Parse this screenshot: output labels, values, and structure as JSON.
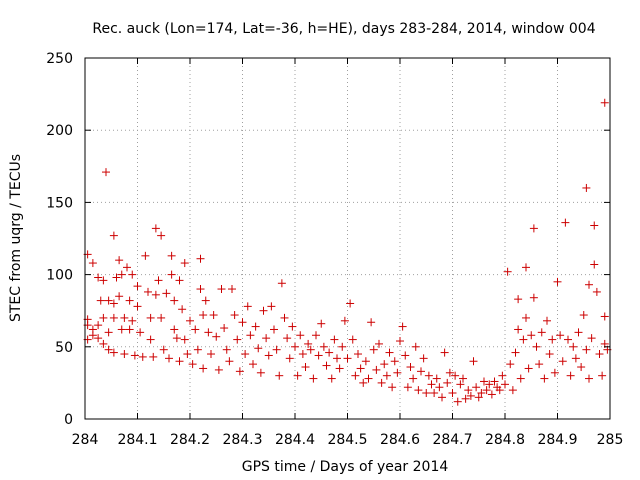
{
  "chart_data": {
    "type": "scatter",
    "title": "Rec. auck (Lon=174, Lat=-36, h=HE), days 283-284, 2014, window 004",
    "xlabel": "GPS time / Days of year 2014",
    "ylabel": "STEC from uqrg / TECUs",
    "xlim": [
      284,
      285
    ],
    "ylim": [
      0,
      250
    ],
    "grid": true,
    "marker": "+",
    "color": "#cc0000",
    "x_ticks": [
      "284",
      "284.1",
      "284.2",
      "284.3",
      "284.4",
      "284.5",
      "284.6",
      "284.7",
      "284.8",
      "284.9",
      "285"
    ],
    "y_ticks": [
      "0",
      "50",
      "100",
      "150",
      "200",
      "250"
    ],
    "series": [
      {
        "name": "STEC",
        "points": [
          [
            284.005,
            114
          ],
          [
            284.005,
            69
          ],
          [
            284.005,
            65
          ],
          [
            284.005,
            55
          ],
          [
            284.015,
            108
          ],
          [
            284.015,
            62
          ],
          [
            284.015,
            58
          ],
          [
            284.025,
            98
          ],
          [
            284.025,
            65
          ],
          [
            284.025,
            56
          ],
          [
            284.03,
            82
          ],
          [
            284.035,
            96
          ],
          [
            284.035,
            70
          ],
          [
            284.035,
            52
          ],
          [
            284.04,
            171
          ],
          [
            284.045,
            82
          ],
          [
            284.045,
            60
          ],
          [
            284.045,
            48
          ],
          [
            284.055,
            127
          ],
          [
            284.055,
            80
          ],
          [
            284.055,
            70
          ],
          [
            284.055,
            46
          ],
          [
            284.06,
            98
          ],
          [
            284.065,
            110
          ],
          [
            284.065,
            85
          ],
          [
            284.07,
            100
          ],
          [
            284.07,
            62
          ],
          [
            284.075,
            70
          ],
          [
            284.075,
            45
          ],
          [
            284.08,
            105
          ],
          [
            284.085,
            82
          ],
          [
            284.085,
            62
          ],
          [
            284.09,
            100
          ],
          [
            284.09,
            68
          ],
          [
            284.095,
            44
          ],
          [
            284.1,
            92
          ],
          [
            284.1,
            78
          ],
          [
            284.105,
            60
          ],
          [
            284.11,
            43
          ],
          [
            284.115,
            113
          ],
          [
            284.12,
            88
          ],
          [
            284.125,
            70
          ],
          [
            284.125,
            55
          ],
          [
            284.13,
            43
          ],
          [
            284.135,
            132
          ],
          [
            284.135,
            86
          ],
          [
            284.14,
            96
          ],
          [
            284.145,
            127
          ],
          [
            284.145,
            70
          ],
          [
            284.15,
            48
          ],
          [
            284.155,
            87
          ],
          [
            284.16,
            42
          ],
          [
            284.165,
            113
          ],
          [
            284.165,
            100
          ],
          [
            284.17,
            82
          ],
          [
            284.17,
            62
          ],
          [
            284.175,
            56
          ],
          [
            284.18,
            96
          ],
          [
            284.18,
            40
          ],
          [
            284.185,
            76
          ],
          [
            284.19,
            108
          ],
          [
            284.19,
            55
          ],
          [
            284.195,
            45
          ],
          [
            284.2,
            68
          ],
          [
            284.205,
            38
          ],
          [
            284.21,
            62
          ],
          [
            284.215,
            48
          ],
          [
            284.22,
            111
          ],
          [
            284.22,
            90
          ],
          [
            284.225,
            72
          ],
          [
            284.225,
            35
          ],
          [
            284.23,
            82
          ],
          [
            284.235,
            60
          ],
          [
            284.24,
            45
          ],
          [
            284.245,
            72
          ],
          [
            284.25,
            57
          ],
          [
            284.255,
            34
          ],
          [
            284.26,
            90
          ],
          [
            284.265,
            63
          ],
          [
            284.27,
            48
          ],
          [
            284.275,
            40
          ],
          [
            284.28,
            90
          ],
          [
            284.285,
            72
          ],
          [
            284.29,
            55
          ],
          [
            284.295,
            33
          ],
          [
            284.3,
            67
          ],
          [
            284.305,
            45
          ],
          [
            284.31,
            78
          ],
          [
            284.315,
            58
          ],
          [
            284.32,
            38
          ],
          [
            284.325,
            64
          ],
          [
            284.33,
            49
          ],
          [
            284.335,
            32
          ],
          [
            284.34,
            75
          ],
          [
            284.345,
            56
          ],
          [
            284.35,
            44
          ],
          [
            284.355,
            78
          ],
          [
            284.36,
            62
          ],
          [
            284.365,
            48
          ],
          [
            284.37,
            30
          ],
          [
            284.375,
            94
          ],
          [
            284.38,
            70
          ],
          [
            284.385,
            56
          ],
          [
            284.39,
            42
          ],
          [
            284.395,
            64
          ],
          [
            284.4,
            50
          ],
          [
            284.405,
            30
          ],
          [
            284.41,
            58
          ],
          [
            284.415,
            45
          ],
          [
            284.42,
            36
          ],
          [
            284.425,
            52
          ],
          [
            284.43,
            48
          ],
          [
            284.435,
            28
          ],
          [
            284.44,
            58
          ],
          [
            284.445,
            44
          ],
          [
            284.45,
            66
          ],
          [
            284.455,
            50
          ],
          [
            284.46,
            37
          ],
          [
            284.465,
            46
          ],
          [
            284.47,
            28
          ],
          [
            284.475,
            55
          ],
          [
            284.48,
            42
          ],
          [
            284.485,
            35
          ],
          [
            284.49,
            50
          ],
          [
            284.495,
            68
          ],
          [
            284.5,
            42
          ],
          [
            284.505,
            80
          ],
          [
            284.51,
            55
          ],
          [
            284.515,
            30
          ],
          [
            284.52,
            45
          ],
          [
            284.525,
            35
          ],
          [
            284.53,
            25
          ],
          [
            284.535,
            40
          ],
          [
            284.54,
            28
          ],
          [
            284.545,
            67
          ],
          [
            284.55,
            48
          ],
          [
            284.555,
            34
          ],
          [
            284.56,
            52
          ],
          [
            284.565,
            25
          ],
          [
            284.57,
            38
          ],
          [
            284.575,
            30
          ],
          [
            284.58,
            46
          ],
          [
            284.585,
            22
          ],
          [
            284.59,
            40
          ],
          [
            284.595,
            32
          ],
          [
            284.6,
            54
          ],
          [
            284.605,
            64
          ],
          [
            284.61,
            44
          ],
          [
            284.615,
            22
          ],
          [
            284.62,
            36
          ],
          [
            284.625,
            28
          ],
          [
            284.63,
            50
          ],
          [
            284.635,
            20
          ],
          [
            284.64,
            33
          ],
          [
            284.645,
            42
          ],
          [
            284.65,
            18
          ],
          [
            284.655,
            30
          ],
          [
            284.66,
            24
          ],
          [
            284.665,
            18
          ],
          [
            284.67,
            28
          ],
          [
            284.675,
            22
          ],
          [
            284.68,
            15
          ],
          [
            284.685,
            46
          ],
          [
            284.69,
            25
          ],
          [
            284.695,
            32
          ],
          [
            284.7,
            18
          ],
          [
            284.705,
            30
          ],
          [
            284.71,
            12
          ],
          [
            284.715,
            24
          ],
          [
            284.72,
            28
          ],
          [
            284.725,
            14
          ],
          [
            284.73,
            20
          ],
          [
            284.735,
            16
          ],
          [
            284.74,
            40
          ],
          [
            284.745,
            22
          ],
          [
            284.75,
            15
          ],
          [
            284.755,
            18
          ],
          [
            284.76,
            26
          ],
          [
            284.765,
            20
          ],
          [
            284.77,
            24
          ],
          [
            284.775,
            17
          ],
          [
            284.78,
            26
          ],
          [
            284.785,
            22
          ],
          [
            284.79,
            20
          ],
          [
            284.795,
            30
          ],
          [
            284.8,
            24
          ],
          [
            284.805,
            102
          ],
          [
            284.81,
            38
          ],
          [
            284.815,
            20
          ],
          [
            284.82,
            46
          ],
          [
            284.825,
            83
          ],
          [
            284.825,
            62
          ],
          [
            284.83,
            28
          ],
          [
            284.835,
            55
          ],
          [
            284.84,
            105
          ],
          [
            284.84,
            70
          ],
          [
            284.845,
            35
          ],
          [
            284.85,
            58
          ],
          [
            284.855,
            132
          ],
          [
            284.855,
            84
          ],
          [
            284.86,
            50
          ],
          [
            284.865,
            38
          ],
          [
            284.87,
            60
          ],
          [
            284.875,
            28
          ],
          [
            284.88,
            68
          ],
          [
            284.885,
            45
          ],
          [
            284.89,
            55
          ],
          [
            284.895,
            32
          ],
          [
            284.9,
            95
          ],
          [
            284.905,
            58
          ],
          [
            284.91,
            40
          ],
          [
            284.915,
            136
          ],
          [
            284.92,
            55
          ],
          [
            284.925,
            30
          ],
          [
            284.93,
            50
          ],
          [
            284.935,
            42
          ],
          [
            284.94,
            60
          ],
          [
            284.945,
            36
          ],
          [
            284.95,
            72
          ],
          [
            284.955,
            160
          ],
          [
            284.955,
            48
          ],
          [
            284.96,
            93
          ],
          [
            284.96,
            28
          ],
          [
            284.965,
            56
          ],
          [
            284.97,
            134
          ],
          [
            284.97,
            107
          ],
          [
            284.975,
            88
          ],
          [
            284.98,
            45
          ],
          [
            284.985,
            30
          ],
          [
            284.99,
            219
          ],
          [
            284.99,
            71
          ],
          [
            284.99,
            52
          ],
          [
            284.995,
            48
          ]
        ]
      }
    ]
  }
}
